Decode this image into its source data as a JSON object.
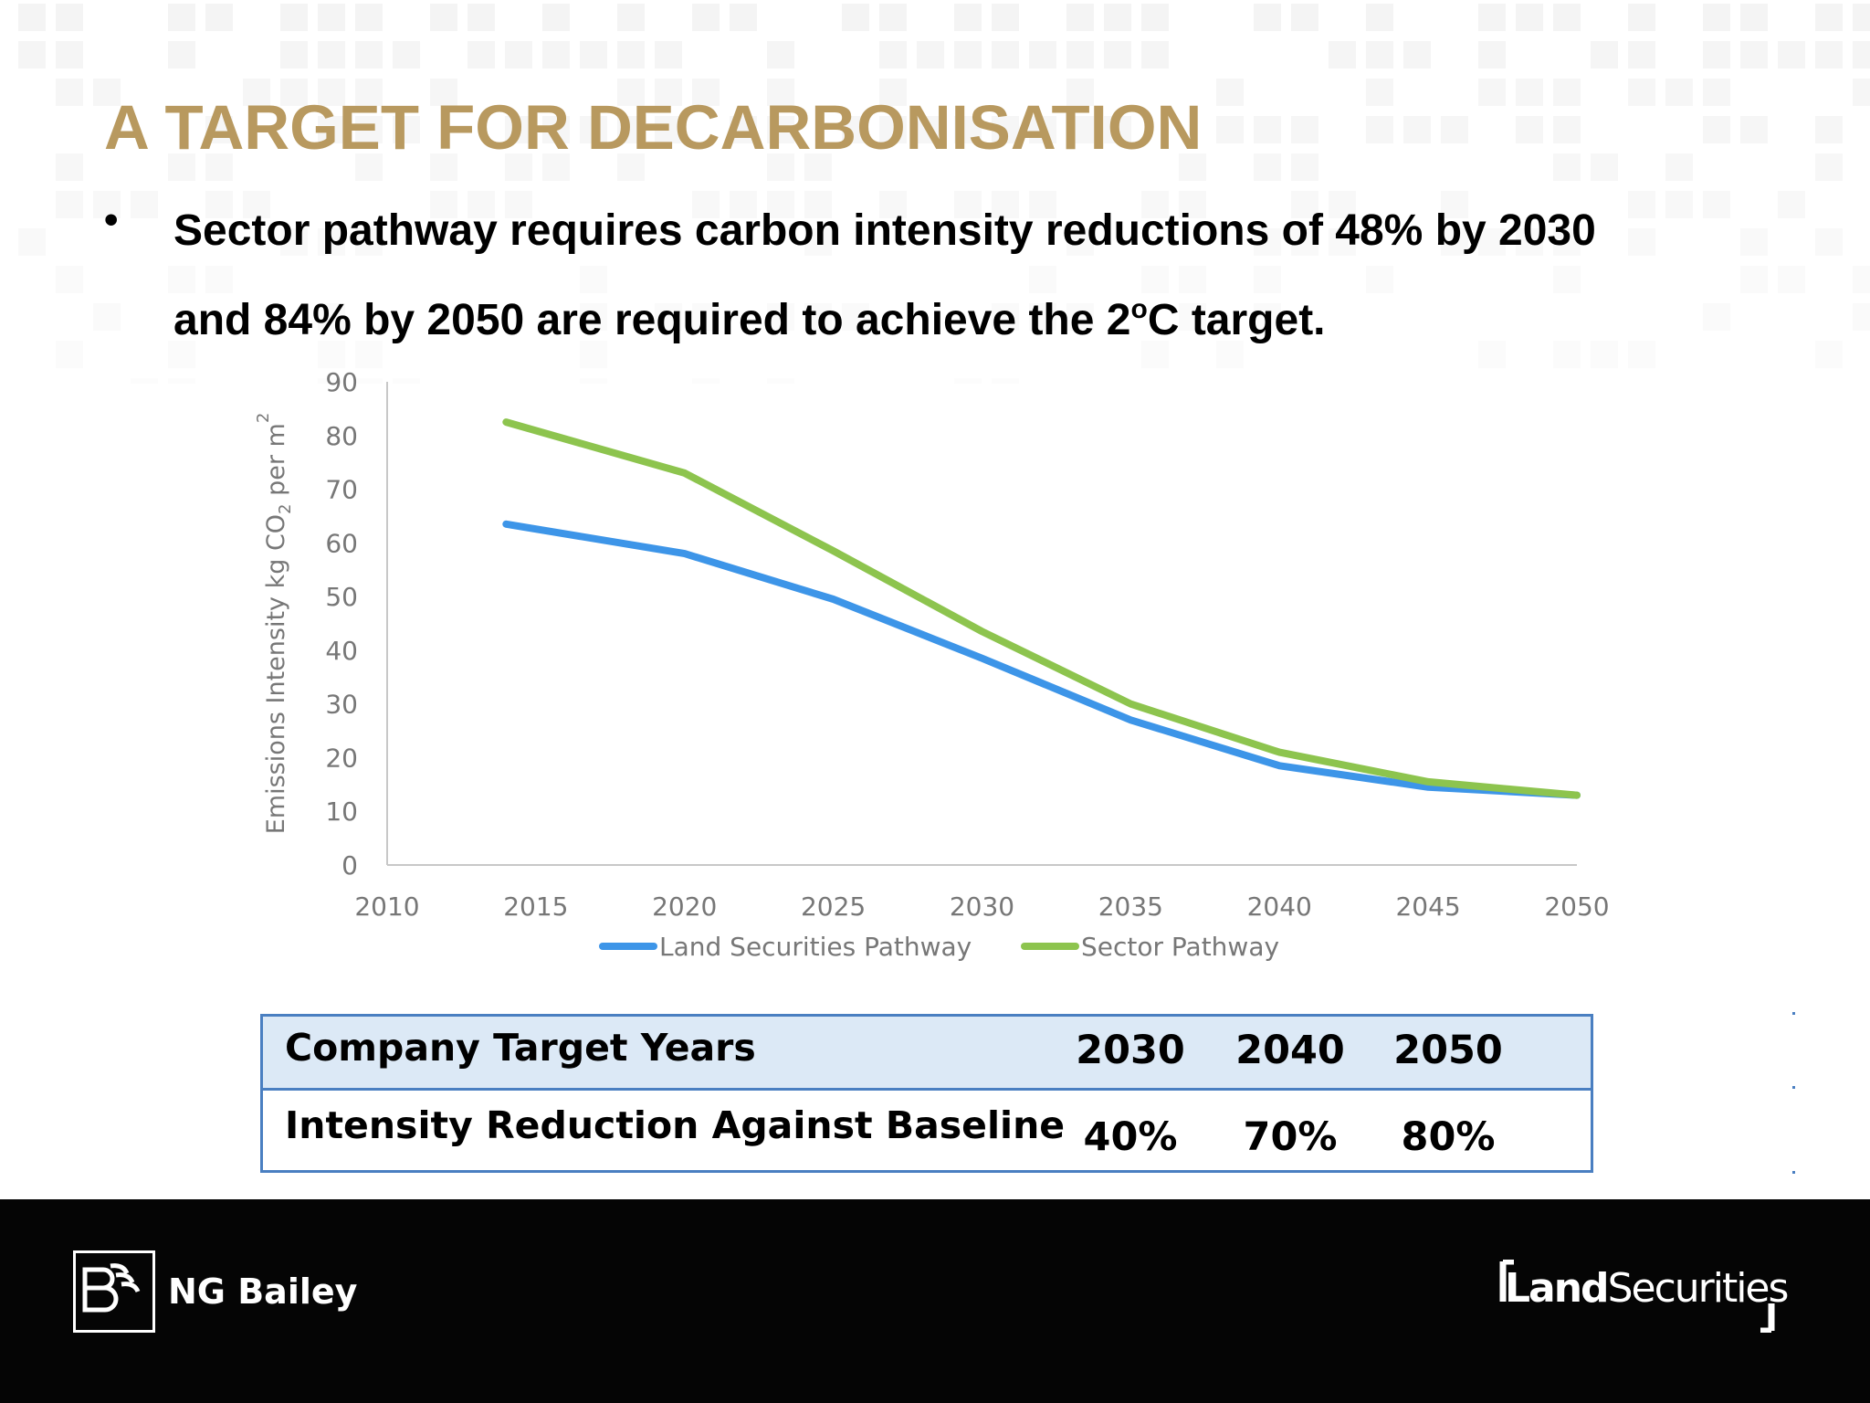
{
  "slide": {
    "title": "A TARGET FOR DECARBONISATION",
    "bullet_marker": "•",
    "bullet_main": "Sector pathway requires carbon intensity reductions of 48% by 2030 and 84% by 2050 are required to achieve the 2",
    "bullet_sup": "o",
    "bullet_end": "C target."
  },
  "chart_data": {
    "type": "line",
    "ylabel": "Emissions Intensity kg CO2 per m2",
    "ylim": [
      0,
      90
    ],
    "yticks": [
      0,
      10,
      20,
      30,
      40,
      50,
      60,
      70,
      80,
      90
    ],
    "xlim": [
      2010,
      2050
    ],
    "xticks": [
      2010,
      2015,
      2020,
      2025,
      2030,
      2035,
      2040,
      2045,
      2050
    ],
    "legend_position": "bottom",
    "grid": false,
    "series": [
      {
        "name": "Land Securities Pathway",
        "color": "#3d95e8",
        "x": [
          2014,
          2020,
          2025,
          2030,
          2035,
          2040,
          2045,
          2050
        ],
        "y": [
          63.5,
          58,
          49.5,
          38.5,
          27,
          18.5,
          14.5,
          13
        ]
      },
      {
        "name": "Sector Pathway",
        "color": "#8dc44e",
        "x": [
          2014,
          2020,
          2025,
          2030,
          2035,
          2040,
          2045,
          2050
        ],
        "y": [
          82.5,
          73,
          58.5,
          43.5,
          30,
          21,
          15.5,
          13
        ]
      }
    ]
  },
  "table": {
    "header_label": "Company Target Years",
    "header_years": [
      "2030",
      "2040",
      "2050"
    ],
    "row_label": "Intensity Reduction Against Baseline",
    "row_values": [
      "40%",
      "70%",
      "80%"
    ]
  },
  "footer": {
    "left_logo_text": "NG Bailey",
    "right_logo_text_bold": "Land",
    "right_logo_text_regular": "Securities"
  },
  "colors": {
    "title": "#b8995f",
    "table_border": "#4a7fc1",
    "table_header_bg": "#dce9f6",
    "footer_bg": "#050505"
  }
}
